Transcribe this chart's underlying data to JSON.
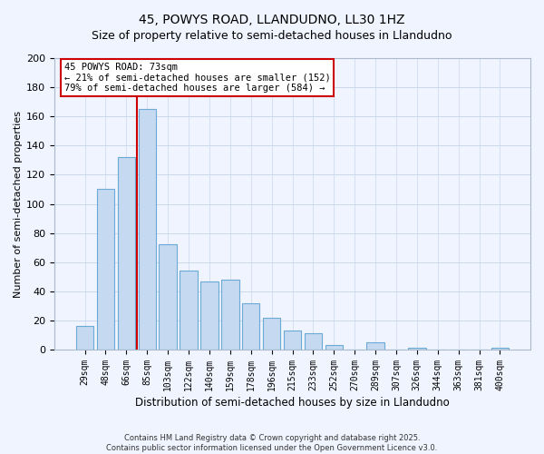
{
  "title": "45, POWYS ROAD, LLANDUDNO, LL30 1HZ",
  "subtitle": "Size of property relative to semi-detached houses in Llandudno",
  "xlabel": "Distribution of semi-detached houses by size in Llandudno",
  "ylabel": "Number of semi-detached properties",
  "bar_labels": [
    "29sqm",
    "48sqm",
    "66sqm",
    "85sqm",
    "103sqm",
    "122sqm",
    "140sqm",
    "159sqm",
    "178sqm",
    "196sqm",
    "215sqm",
    "233sqm",
    "252sqm",
    "270sqm",
    "289sqm",
    "307sqm",
    "326sqm",
    "344sqm",
    "363sqm",
    "381sqm",
    "400sqm"
  ],
  "bar_values": [
    16,
    110,
    132,
    165,
    72,
    54,
    47,
    48,
    32,
    22,
    13,
    11,
    3,
    0,
    5,
    0,
    1,
    0,
    0,
    0,
    1
  ],
  "bar_color": "#c5d9f0",
  "bar_edge_color": "#6aaad4",
  "vline_color": "#cc0000",
  "annotation_title": "45 POWYS ROAD: 73sqm",
  "annotation_line1": "← 21% of semi-detached houses are smaller (152)",
  "annotation_line2": "79% of semi-detached houses are larger (584) →",
  "annotation_box_color": "#ffffff",
  "annotation_box_edge": "#cc0000",
  "ylim": [
    0,
    200
  ],
  "yticks": [
    0,
    20,
    40,
    60,
    80,
    100,
    120,
    140,
    160,
    180,
    200
  ],
  "footer_line1": "Contains HM Land Registry data © Crown copyright and database right 2025.",
  "footer_line2": "Contains public sector information licensed under the Open Government Licence v3.0.",
  "bg_color": "#f0f4ff",
  "grid_color": "#c8d8ec",
  "title_fontsize": 10,
  "subtitle_fontsize": 9
}
